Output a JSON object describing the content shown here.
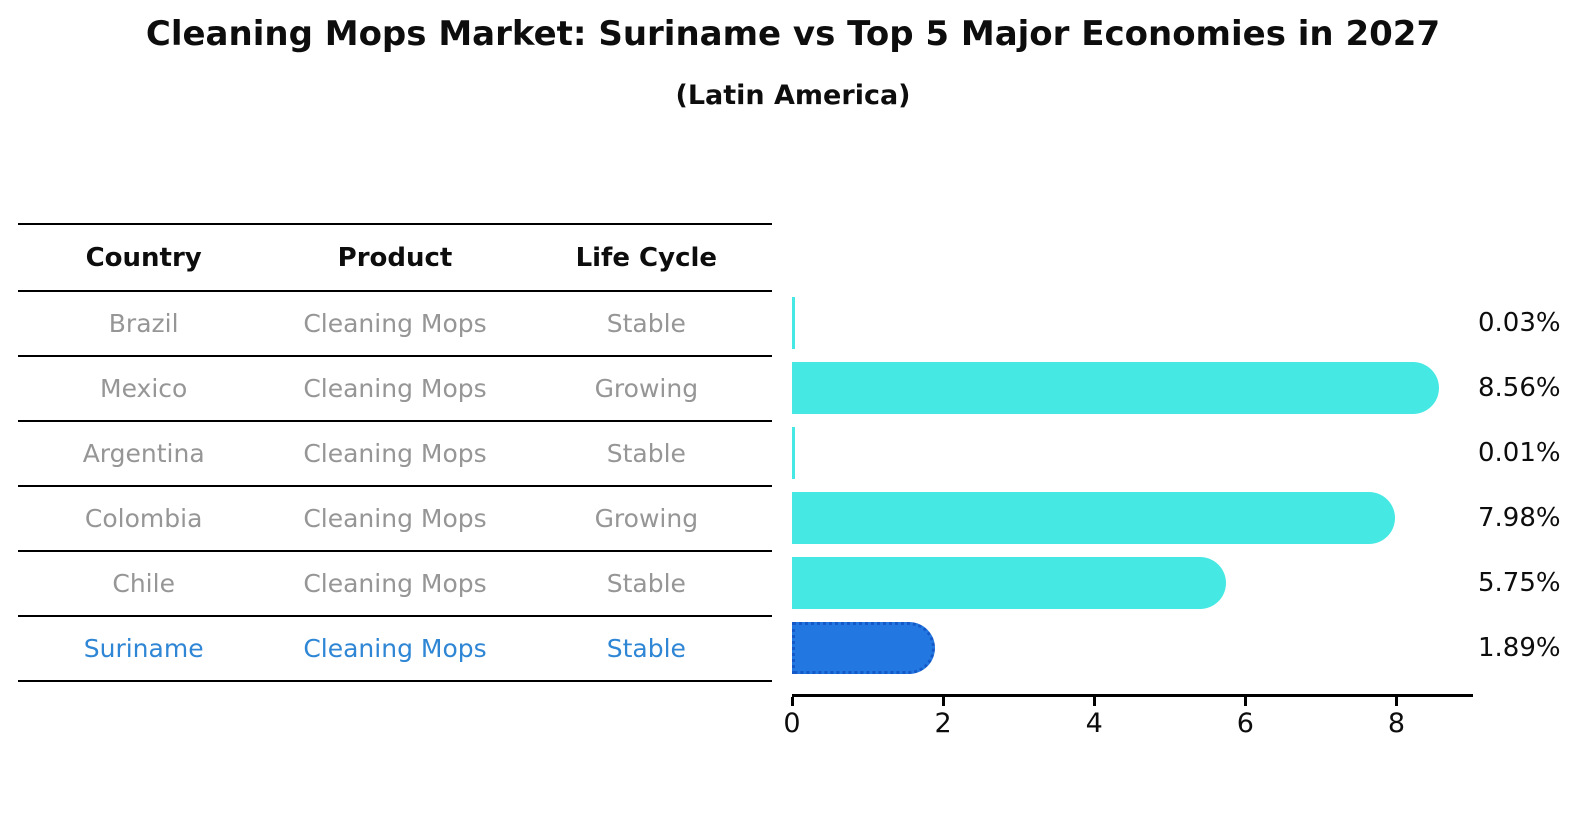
{
  "title": "Cleaning Mops Market: Suriname vs Top 5 Major Economies in 2027",
  "subtitle": "(Latin America)",
  "table": {
    "headers": [
      "Country",
      "Product",
      "Life Cycle"
    ],
    "rows": [
      {
        "country": "Brazil",
        "product": "Cleaning Mops",
        "life_cycle": "Stable",
        "highlight": false
      },
      {
        "country": "Mexico",
        "product": "Cleaning Mops",
        "life_cycle": "Growing",
        "highlight": false
      },
      {
        "country": "Argentina",
        "product": "Cleaning Mops",
        "life_cycle": "Stable",
        "highlight": false
      },
      {
        "country": "Colombia",
        "product": "Cleaning Mops",
        "life_cycle": "Growing",
        "highlight": false
      },
      {
        "country": "Chile",
        "product": "Cleaning Mops",
        "life_cycle": "Stable",
        "highlight": false
      },
      {
        "country": "Suriname",
        "product": "Cleaning Mops",
        "life_cycle": "Stable",
        "highlight": true
      }
    ]
  },
  "chart_data": {
    "type": "bar",
    "orientation": "horizontal",
    "title": "Cleaning Mops Market: Suriname vs Top 5 Major Economies in 2027",
    "subtitle": "(Latin America)",
    "categories": [
      "Brazil",
      "Mexico",
      "Argentina",
      "Colombia",
      "Chile",
      "Suriname"
    ],
    "values": [
      0.03,
      8.56,
      0.01,
      7.98,
      5.75,
      1.89
    ],
    "value_labels": [
      "0.03%",
      "8.56%",
      "0.01%",
      "7.98%",
      "5.75%",
      "1.89%"
    ],
    "xlabel": "",
    "ylabel": "",
    "xlim": [
      0,
      9
    ],
    "xticks": [
      0,
      2,
      4,
      6,
      8
    ],
    "grid": false,
    "legend": false,
    "bar_color": "#45e8e2",
    "highlight_bar_color": "#2277e0",
    "highlight_bar_border_color": "#1559c9",
    "highlight_index": 5,
    "highlight_text_color": "#2e86d5",
    "table_text_color": "#969696",
    "axis_color": "#000000"
  }
}
